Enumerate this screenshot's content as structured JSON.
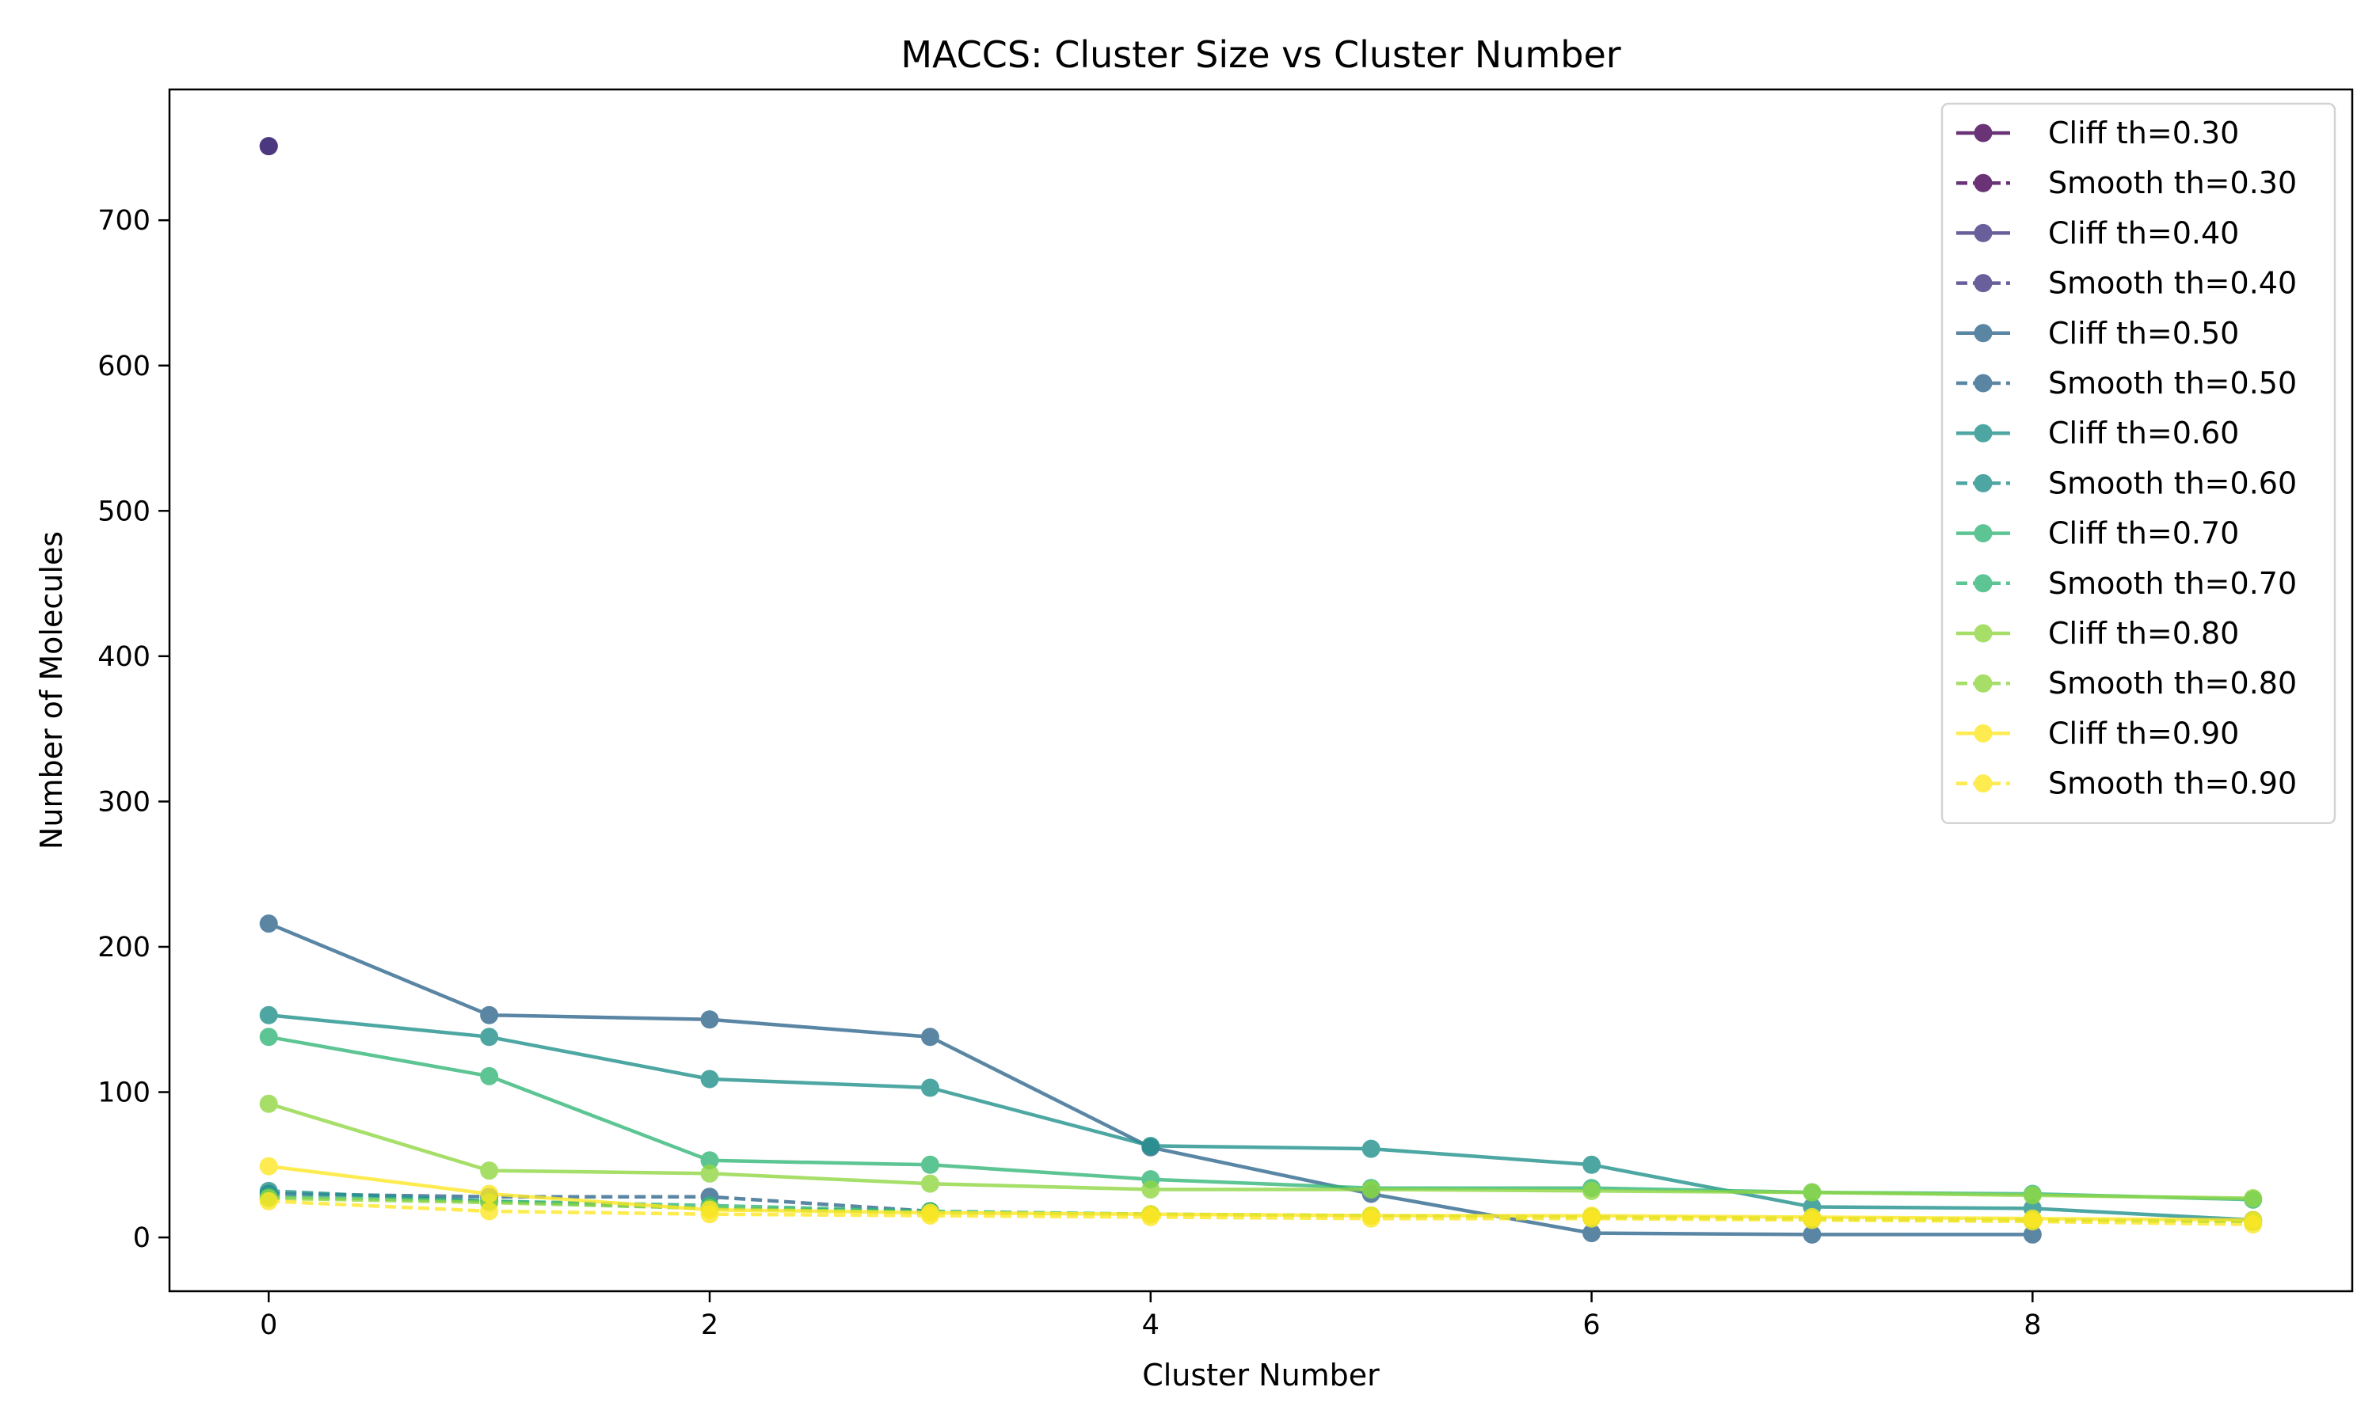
{
  "chart_data": {
    "type": "line",
    "title": "MACCS: Cluster Size vs Cluster Number",
    "xlabel": "Cluster Number",
    "ylabel": "Number of Molecules",
    "xlim": [
      -0.45,
      9.45
    ],
    "ylim": [
      -37,
      790
    ],
    "xticks": [
      "0",
      "2",
      "4",
      "6",
      "8"
    ],
    "yticks": [
      "0",
      "100",
      "200",
      "300",
      "400",
      "500",
      "600",
      "700"
    ],
    "grid": false,
    "legend_position": "top-right",
    "series": [
      {
        "name": "Cliff th=0.30",
        "style": "solid",
        "color": "#440154",
        "x": [
          0
        ],
        "values": [
          751
        ]
      },
      {
        "name": "Smooth th=0.30",
        "style": "dashed",
        "color": "#440154",
        "x": [],
        "values": []
      },
      {
        "name": "Cliff th=0.40",
        "style": "solid",
        "color": "#443983",
        "x": [
          0
        ],
        "values": [
          751
        ]
      },
      {
        "name": "Smooth th=0.40",
        "style": "dashed",
        "color": "#443983",
        "x": [],
        "values": []
      },
      {
        "name": "Cliff th=0.50",
        "style": "solid",
        "color": "#31688e",
        "x": [
          0,
          1,
          2,
          3,
          4,
          5,
          6,
          7,
          8
        ],
        "values": [
          216,
          153,
          150,
          138,
          62,
          30,
          3,
          2,
          2
        ]
      },
      {
        "name": "Smooth th=0.50",
        "style": "dashed",
        "color": "#31688e",
        "x": [
          0,
          1,
          2,
          3
        ],
        "values": [
          30,
          28,
          28,
          18
        ]
      },
      {
        "name": "Cliff th=0.60",
        "style": "solid",
        "color": "#21918c",
        "x": [
          0,
          1,
          2,
          3,
          4,
          5,
          6,
          7,
          8,
          9
        ],
        "values": [
          153,
          138,
          109,
          103,
          63,
          61,
          50,
          21,
          20,
          12
        ]
      },
      {
        "name": "Smooth th=0.60",
        "style": "dashed",
        "color": "#21918c",
        "x": [
          0,
          1,
          2,
          3
        ],
        "values": [
          32,
          25,
          20,
          18
        ]
      },
      {
        "name": "Cliff th=0.70",
        "style": "solid",
        "color": "#35b779",
        "x": [
          0,
          1,
          2,
          3,
          4,
          5,
          6,
          7,
          8,
          9
        ],
        "values": [
          138,
          111,
          53,
          50,
          40,
          34,
          34,
          31,
          30,
          26
        ]
      },
      {
        "name": "Smooth th=0.70",
        "style": "dashed",
        "color": "#35b779",
        "x": [
          0,
          1,
          2,
          3,
          4,
          5,
          6,
          7,
          8,
          9
        ],
        "values": [
          28,
          25,
          22,
          18,
          16,
          15,
          14,
          13,
          12,
          11
        ]
      },
      {
        "name": "Cliff th=0.80",
        "style": "solid",
        "color": "#90d743",
        "x": [
          0,
          1,
          2,
          3,
          4,
          5,
          6,
          7,
          8,
          9
        ],
        "values": [
          92,
          46,
          44,
          37,
          33,
          33,
          32,
          31,
          29,
          27
        ]
      },
      {
        "name": "Smooth th=0.80",
        "style": "dashed",
        "color": "#90d743",
        "x": [
          0,
          1,
          2,
          3,
          4,
          5,
          6,
          7,
          8,
          9
        ],
        "values": [
          27,
          24,
          20,
          17,
          16,
          15,
          14,
          13,
          12,
          11
        ]
      },
      {
        "name": "Cliff th=0.90",
        "style": "solid",
        "color": "#fde725",
        "x": [
          0,
          1,
          2,
          3,
          4,
          5,
          6,
          7,
          8,
          9
        ],
        "values": [
          49,
          30,
          19,
          17,
          16,
          15,
          15,
          14,
          13,
          12
        ]
      },
      {
        "name": "Smooth th=0.90",
        "style": "dashed",
        "color": "#fde725",
        "x": [
          0,
          1,
          2,
          3,
          4,
          5,
          6,
          7,
          8,
          9
        ],
        "values": [
          25,
          18,
          16,
          15,
          14,
          13,
          13,
          12,
          11,
          9
        ]
      }
    ]
  }
}
